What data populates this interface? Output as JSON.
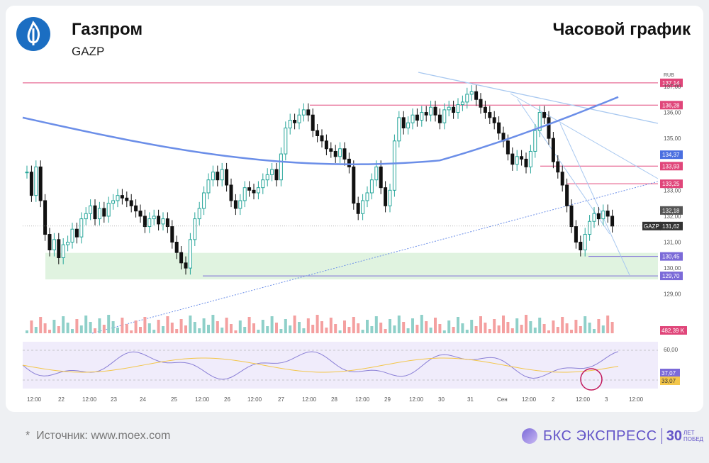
{
  "header": {
    "company": "Газпром",
    "ticker": "GAZP",
    "chart_title": "Часовой график"
  },
  "footer": {
    "source": "Источник: www.moex.com",
    "brand": "БКС ЭКСПРЕСС",
    "brand_num": "30",
    "brand_sub1": "ЛЕТ",
    "brand_sub2": "ПОБЕД"
  },
  "colors": {
    "up": "#26a69a",
    "down": "#111111",
    "ma": "#6b8ee8",
    "resistance": "#e0467a",
    "support": "#7b6ad8",
    "zone": "#d8f0d8",
    "trend": "#a8c8f0",
    "rsi": "#8a7fd6",
    "rsi_ma": "#f3c64a",
    "vol_up": "#8fd0c9",
    "vol_down": "#f4a0a0"
  },
  "chart_data": {
    "type": "candlestick",
    "currency": "RUB",
    "ylim": [
      128.5,
      137.5
    ],
    "y_ticks": [
      "137,00",
      "136,00",
      "135,00",
      "133,00",
      "132,00",
      "131,00",
      "130,00",
      "129,00"
    ],
    "x_ticks": [
      "12:00",
      "22",
      "12:00",
      "23",
      "24",
      "25",
      "12:00",
      "26",
      "12:00",
      "27",
      "12:00",
      "28",
      "12:00",
      "29",
      "12:00",
      "30",
      "31",
      "Сен",
      "12:00",
      "2",
      "12:00",
      "3",
      "12:00"
    ],
    "levels": [
      {
        "value": 137.14,
        "label": "137,14",
        "kind": "resistance"
      },
      {
        "value": 136.28,
        "label": "136,28",
        "kind": "resistance"
      },
      {
        "value": 133.93,
        "label": "133,93",
        "kind": "resistance"
      },
      {
        "value": 133.25,
        "label": "133,25",
        "kind": "resistance"
      },
      {
        "value": 130.45,
        "label": "130,45",
        "kind": "support"
      },
      {
        "value": 129.7,
        "label": "129,70",
        "kind": "support"
      }
    ],
    "ma_label": "134,37",
    "last_high_label": "132,18",
    "last_price_label": "131,62",
    "last_price_value": 131.62,
    "ticker_label": "GAZP",
    "volume_label": "482,39 K",
    "rsi": {
      "ticks": [
        "60,00"
      ],
      "value_label": "37,07",
      "ma_label": "33,07"
    },
    "closes": [
      133.7,
      132.8,
      133.9,
      132.6,
      131.3,
      130.7,
      131.1,
      130.4,
      130.9,
      131.0,
      131.5,
      131.2,
      131.9,
      132.1,
      132.4,
      131.9,
      132.3,
      132.0,
      132.5,
      132.6,
      132.8,
      132.7,
      132.6,
      132.4,
      132.2,
      132.0,
      131.6,
      131.9,
      132.0,
      131.7,
      131.9,
      131.6,
      131.0,
      130.6,
      130.2,
      130.0,
      131.1,
      131.9,
      132.3,
      132.9,
      133.4,
      133.7,
      133.4,
      133.8,
      133.2,
      132.6,
      132.3,
      132.6,
      133.1,
      133.0,
      132.9,
      133.1,
      133.4,
      133.6,
      133.8,
      133.4,
      134.4,
      135.4,
      135.7,
      135.6,
      135.9,
      136.1,
      135.9,
      135.3,
      135.1,
      134.9,
      134.6,
      134.5,
      134.3,
      134.6,
      134.2,
      133.9,
      132.5,
      132.1,
      132.6,
      132.9,
      133.4,
      133.9,
      133.1,
      132.4,
      133.0,
      134.9,
      135.8,
      135.4,
      135.6,
      135.9,
      135.7,
      136.0,
      135.9,
      136.2,
      135.9,
      135.6,
      136.1,
      136.2,
      136.0,
      136.3,
      136.4,
      136.7,
      136.8,
      136.5,
      136.2,
      136.0,
      135.8,
      135.6,
      135.2,
      134.9,
      134.4,
      134.0,
      134.3,
      134.2,
      133.9,
      134.5,
      135.3,
      136.0,
      135.8,
      135.0,
      134.1,
      133.7,
      133.2,
      132.4,
      131.6,
      131.0,
      130.7,
      131.3,
      131.8,
      132.1,
      131.9,
      132.2,
      132.0,
      131.62
    ]
  }
}
